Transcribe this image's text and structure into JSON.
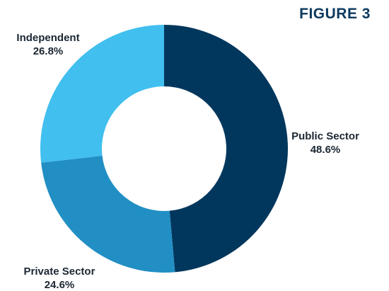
{
  "figure_label": "FIGURE 3",
  "chart_data": {
    "type": "pie",
    "donut": true,
    "title": "",
    "start_angle_deg": 0,
    "direction": "clockwise",
    "slices": [
      {
        "label": "Public Sector",
        "value": 48.6,
        "display": "48.6%",
        "color": "#02375d"
      },
      {
        "label": "Private Sector",
        "value": 24.6,
        "display": "24.6%",
        "color": "#218fc4"
      },
      {
        "label": "Independent",
        "value": 26.8,
        "display": "26.8%",
        "color": "#41bfee"
      }
    ]
  }
}
